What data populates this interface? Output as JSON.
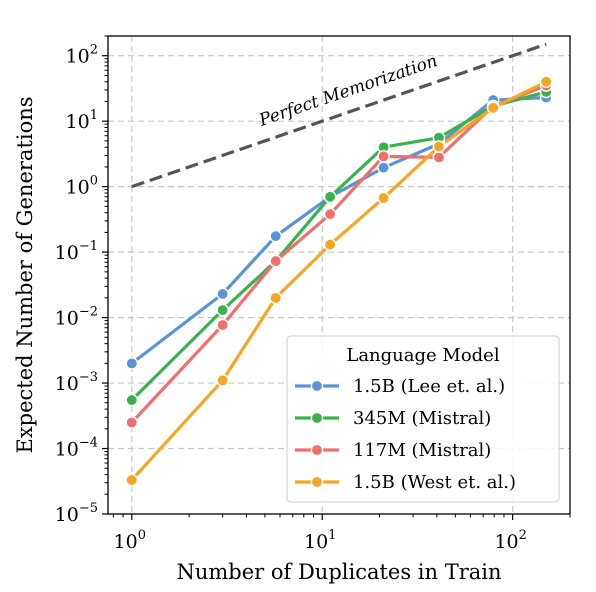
{
  "chart_data": {
    "type": "line",
    "xscale": "log",
    "yscale": "log",
    "xlabel": "Number of Duplicates in Train",
    "ylabel": "Expected Number of Generations",
    "xlim": [
      0.75,
      200
    ],
    "ylim": [
      1e-05,
      200
    ],
    "grid": true,
    "x_ticks": [
      {
        "base": "10",
        "exp": "0",
        "value": 1
      },
      {
        "base": "10",
        "exp": "1",
        "value": 10
      },
      {
        "base": "10",
        "exp": "2",
        "value": 100
      }
    ],
    "y_ticks": [
      {
        "base": "10",
        "exp": "−5",
        "value": 1e-05
      },
      {
        "base": "10",
        "exp": "−4",
        "value": 0.0001
      },
      {
        "base": "10",
        "exp": "−3",
        "value": 0.001
      },
      {
        "base": "10",
        "exp": "−2",
        "value": 0.01
      },
      {
        "base": "10",
        "exp": "−1",
        "value": 0.1
      },
      {
        "base": "10",
        "exp": "0",
        "value": 1
      },
      {
        "base": "10",
        "exp": "1",
        "value": 10
      },
      {
        "base": "10",
        "exp": "2",
        "value": 100
      }
    ],
    "reference_line": {
      "label": "Perfect Memorization",
      "x": [
        1,
        150
      ],
      "y": [
        1,
        150
      ],
      "color": "#555555"
    },
    "legend": {
      "title": "Language Model",
      "placement": "lower-right"
    },
    "series": [
      {
        "name": "1.5B (Lee et. al.)",
        "color": "#5b93d9",
        "x": [
          1,
          3,
          5.7,
          11,
          21,
          41,
          79,
          150
        ],
        "y": [
          0.002,
          0.023,
          0.175,
          0.7,
          1.95,
          4.5,
          21,
          23
        ]
      },
      {
        "name": "345M (Mistral)",
        "color": "#3bb14d",
        "x": [
          1,
          3,
          5.7,
          11,
          21,
          41,
          79,
          150
        ],
        "y": [
          0.00055,
          0.013,
          0.073,
          0.7,
          4.0,
          5.6,
          17,
          28
        ]
      },
      {
        "name": "117M (Mistral)",
        "color": "#f06e6e",
        "x": [
          1,
          3,
          5.7,
          11,
          21,
          41,
          79,
          150
        ],
        "y": [
          0.00025,
          0.0077,
          0.073,
          0.38,
          2.9,
          2.8,
          17,
          35
        ]
      },
      {
        "name": "1.5B (West et. al.)",
        "color": "#f5a623",
        "x": [
          1,
          3,
          5.7,
          11,
          21,
          41,
          79,
          150
        ],
        "y": [
          3.3e-05,
          0.0011,
          0.02,
          0.13,
          0.67,
          4.1,
          16,
          40
        ]
      }
    ]
  }
}
